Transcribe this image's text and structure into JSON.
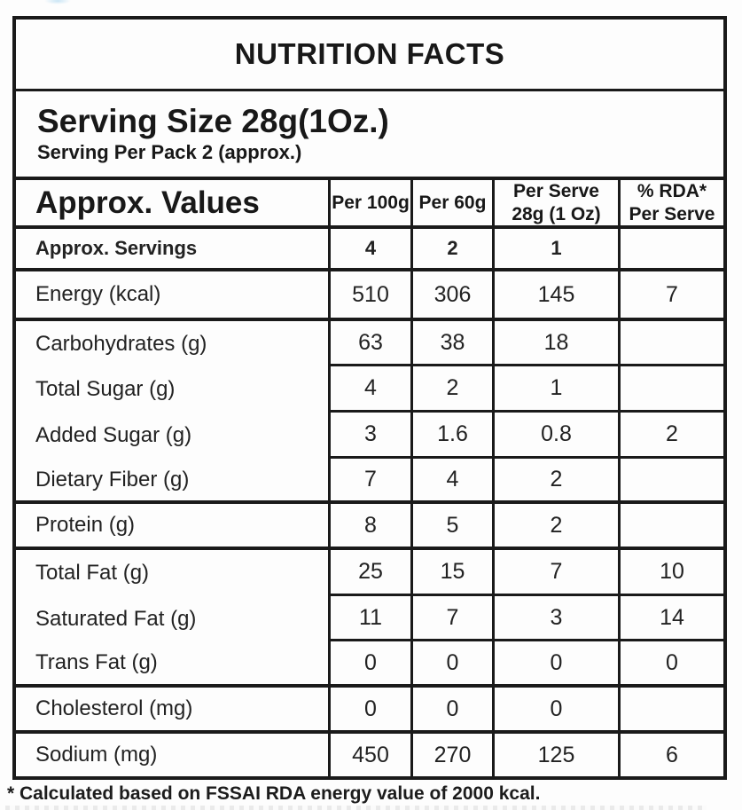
{
  "colors": {
    "border": "#1a1a1a",
    "text": "#1c1c1c",
    "background": "#fdfdfd"
  },
  "label": {
    "title": "NUTRITION FACTS",
    "serving_size": "Serving Size 28g(1Oz.)",
    "serving_per_pack": "Serving Per Pack 2 (approx.)",
    "footnote": "* Calculated based on FSSAI RDA energy value of 2000 kcal."
  },
  "table": {
    "header": {
      "label": "Approx. Values",
      "columns": [
        {
          "line1": "Per 100g",
          "line2": ""
        },
        {
          "line1": "Per 60g",
          "line2": ""
        },
        {
          "line1": "Per Serve",
          "line2": "28g (1 Oz)"
        },
        {
          "line1": "% RDA*",
          "line2": "Per Serve"
        }
      ]
    },
    "rows": [
      {
        "label": "Approx. Servings",
        "per_100g": "4",
        "per_60g": "2",
        "per_serve": "1",
        "rda_per_serve": "",
        "bold": true,
        "separator_below": "full"
      },
      {
        "label": "Energy (kcal)",
        "per_100g": "510",
        "per_60g": "306",
        "per_serve": "145",
        "rda_per_serve": "7",
        "bold": false,
        "separator_below": "full"
      },
      {
        "label": "Carbohydrates (g)",
        "per_100g": "63",
        "per_60g": "38",
        "per_serve": "18",
        "rda_per_serve": "",
        "bold": false,
        "separator_below": "partial"
      },
      {
        "label": "Total Sugar (g)",
        "per_100g": "4",
        "per_60g": "2",
        "per_serve": "1",
        "rda_per_serve": "",
        "bold": false,
        "separator_below": "partial"
      },
      {
        "label": "Added Sugar (g)",
        "per_100g": "3",
        "per_60g": "1.6",
        "per_serve": "0.8",
        "rda_per_serve": "2",
        "bold": false,
        "separator_below": "partial"
      },
      {
        "label": "Dietary Fiber (g)",
        "per_100g": "7",
        "per_60g": "4",
        "per_serve": "2",
        "rda_per_serve": "",
        "bold": false,
        "separator_below": "full"
      },
      {
        "label": "Protein (g)",
        "per_100g": "8",
        "per_60g": "5",
        "per_serve": "2",
        "rda_per_serve": "",
        "bold": false,
        "separator_below": "full"
      },
      {
        "label": "Total Fat (g)",
        "per_100g": "25",
        "per_60g": "15",
        "per_serve": "7",
        "rda_per_serve": "10",
        "bold": false,
        "separator_below": "partial"
      },
      {
        "label": "Saturated Fat (g)",
        "per_100g": "11",
        "per_60g": "7",
        "per_serve": "3",
        "rda_per_serve": "14",
        "bold": false,
        "separator_below": "partial"
      },
      {
        "label": "Trans Fat (g)",
        "per_100g": "0",
        "per_60g": "0",
        "per_serve": "0",
        "rda_per_serve": "0",
        "bold": false,
        "separator_below": "full"
      },
      {
        "label": "Cholesterol (mg)",
        "per_100g": "0",
        "per_60g": "0",
        "per_serve": "0",
        "rda_per_serve": "",
        "bold": false,
        "separator_below": "full"
      },
      {
        "label": "Sodium (mg)",
        "per_100g": "450",
        "per_60g": "270",
        "per_serve": "125",
        "rda_per_serve": "6",
        "bold": false,
        "separator_below": "none"
      }
    ]
  }
}
